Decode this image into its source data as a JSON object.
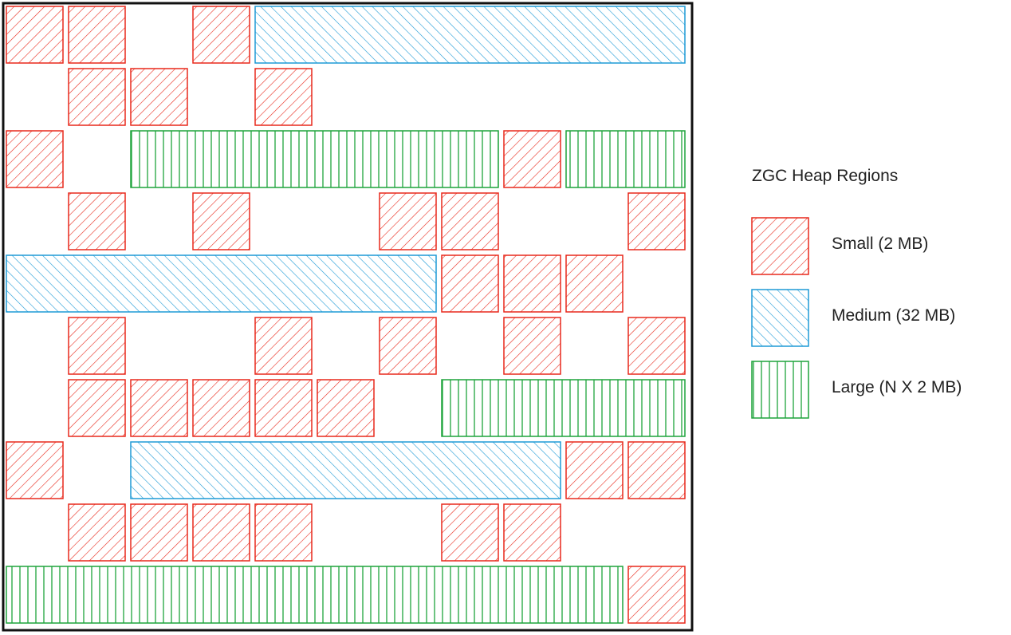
{
  "legend": {
    "title": "ZGC Heap Regions",
    "items": [
      {
        "key": "small",
        "label": "Small (2 MB)",
        "color": "#e8291c",
        "hatch": "diagonal-forward"
      },
      {
        "key": "medium",
        "label": "Medium (32 MB)",
        "color": "#1e9ad6",
        "hatch": "diagonal-backward"
      },
      {
        "key": "large",
        "label": "Large (N X 2 MB)",
        "color": "#1ea43c",
        "hatch": "vertical"
      }
    ]
  },
  "heap": {
    "rows": [
      [
        {
          "t": "small",
          "c": 0
        },
        {
          "t": "small",
          "c": 1
        },
        {
          "t": "small",
          "c": 3
        },
        {
          "t": "medium",
          "c": 4,
          "w": 7
        }
      ],
      [
        {
          "t": "small",
          "c": 1
        },
        {
          "t": "small",
          "c": 2
        },
        {
          "t": "small",
          "c": 4
        }
      ],
      [
        {
          "t": "small",
          "c": 0
        },
        {
          "t": "large",
          "c": 2,
          "w": 6
        },
        {
          "t": "small",
          "c": 8
        },
        {
          "t": "large",
          "c": 9,
          "w": 2
        }
      ],
      [
        {
          "t": "small",
          "c": 1
        },
        {
          "t": "small",
          "c": 3
        },
        {
          "t": "small",
          "c": 6
        },
        {
          "t": "small",
          "c": 7
        },
        {
          "t": "small",
          "c": 10
        }
      ],
      [
        {
          "t": "medium",
          "c": 0,
          "w": 7
        },
        {
          "t": "small",
          "c": 7
        },
        {
          "t": "small",
          "c": 8
        },
        {
          "t": "small",
          "c": 9
        }
      ],
      [
        {
          "t": "small",
          "c": 1
        },
        {
          "t": "small",
          "c": 4
        },
        {
          "t": "small",
          "c": 6
        },
        {
          "t": "small",
          "c": 8
        },
        {
          "t": "small",
          "c": 10
        }
      ],
      [
        {
          "t": "small",
          "c": 1
        },
        {
          "t": "small",
          "c": 2
        },
        {
          "t": "small",
          "c": 3
        },
        {
          "t": "small",
          "c": 4
        },
        {
          "t": "small",
          "c": 5
        },
        {
          "t": "large",
          "c": 7,
          "w": 4
        }
      ],
      [
        {
          "t": "small",
          "c": 0
        },
        {
          "t": "medium",
          "c": 2,
          "w": 7
        },
        {
          "t": "small",
          "c": 9
        },
        {
          "t": "small",
          "c": 10
        }
      ],
      [
        {
          "t": "small",
          "c": 1
        },
        {
          "t": "small",
          "c": 2
        },
        {
          "t": "small",
          "c": 3
        },
        {
          "t": "small",
          "c": 4
        },
        {
          "t": "small",
          "c": 7
        },
        {
          "t": "small",
          "c": 8
        }
      ],
      [
        {
          "t": "large",
          "c": 0,
          "w": 10
        },
        {
          "t": "small",
          "c": 10
        }
      ]
    ]
  }
}
